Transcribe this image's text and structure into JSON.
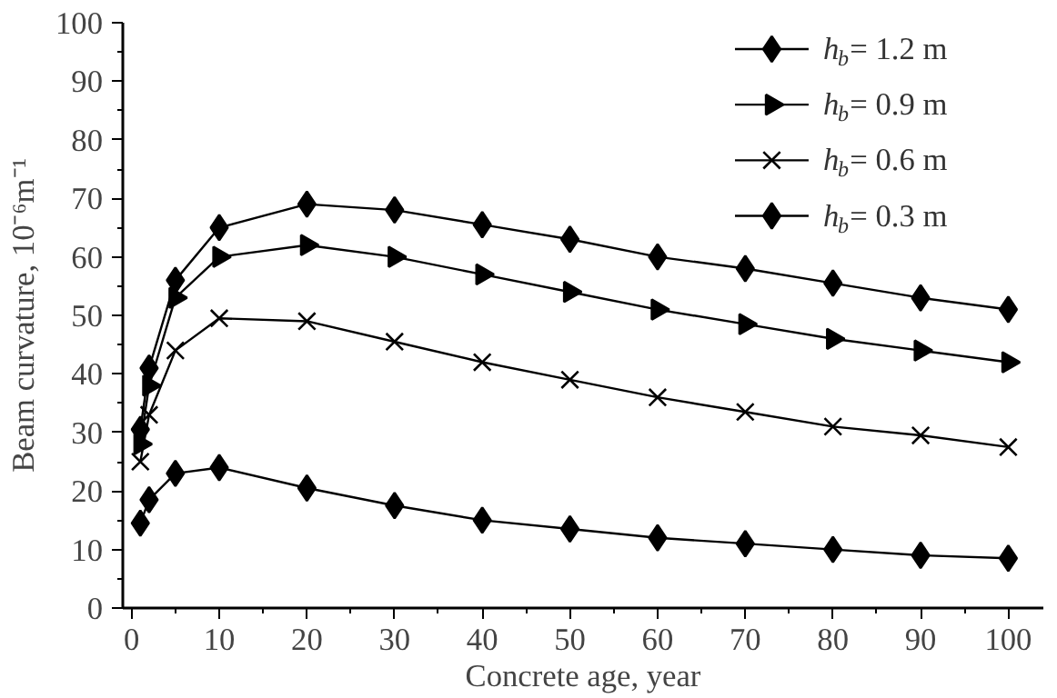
{
  "chart_data": {
    "type": "line",
    "xlabel": "Concrete age, year",
    "ylabel": "Beam curvature, 10⁻⁶m⁻¹",
    "x": [
      1,
      2,
      5,
      10,
      20,
      30,
      40,
      50,
      60,
      70,
      80,
      90,
      100
    ],
    "xlim": [
      -1,
      104
    ],
    "ylim": [
      0,
      100
    ],
    "xticks": [
      0,
      {
        "value": 5,
        "label": null
      },
      10,
      {
        "value": 15,
        "label": null
      },
      20,
      {
        "value": 25,
        "label": null
      },
      30,
      {
        "value": 35,
        "label": null
      },
      40,
      {
        "value": 45,
        "label": null
      },
      50,
      {
        "value": 55,
        "label": null
      },
      60,
      {
        "value": 65,
        "label": null
      },
      70,
      {
        "value": 75,
        "label": null
      },
      80,
      {
        "value": 85,
        "label": null
      },
      90,
      {
        "value": 95,
        "label": null
      },
      100
    ],
    "yticks": [
      0,
      {
        "value": 5,
        "label": null
      },
      10,
      {
        "value": 15,
        "label": null
      },
      20,
      {
        "value": 25,
        "label": null
      },
      30,
      {
        "value": 35,
        "label": null
      },
      40,
      {
        "value": 45,
        "label": null
      },
      50,
      {
        "value": 55,
        "label": null
      },
      60,
      {
        "value": 65,
        "label": null
      },
      70,
      {
        "value": 75,
        "label": null
      },
      80,
      {
        "value": 85,
        "label": null
      },
      90,
      {
        "value": 95,
        "label": null
      },
      100
    ],
    "grid": false,
    "legend": "top right",
    "line_style": "solid",
    "series": [
      {
        "name": "h$_{b}$= 1.2 m",
        "color": "#000000",
        "marker": "diamond",
        "values": [
          30.5,
          41,
          56,
          65,
          69,
          68,
          65.5,
          63,
          60,
          58,
          55.5,
          53,
          51
        ]
      },
      {
        "name": "h$_{b}$= 0.9 m",
        "color": "#000000",
        "marker": "triangle",
        "values": [
          28,
          38,
          53,
          60,
          62,
          60,
          57,
          54,
          51,
          48.5,
          46,
          44,
          42
        ]
      },
      {
        "name": "h$_{b}$= 0.6 m",
        "color": "#000000",
        "marker": "cross",
        "values": [
          25,
          33,
          44,
          49.5,
          49,
          45.5,
          42,
          39,
          36,
          33.5,
          31,
          29.5,
          27.5
        ]
      },
      {
        "name": "h$_{b}$= 0.3 m",
        "color": "#000000",
        "marker": "diamond",
        "values": [
          14.5,
          18.5,
          23,
          24,
          20.5,
          17.5,
          15,
          13.5,
          12,
          11,
          10,
          9,
          8.5
        ]
      }
    ]
  }
}
